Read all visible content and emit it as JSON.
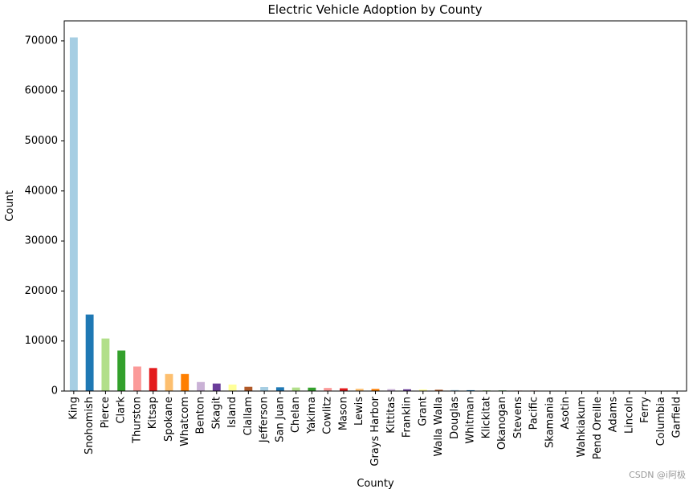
{
  "chart_data": {
    "type": "bar",
    "title": "Electric Vehicle Adoption by County",
    "xlabel": "County",
    "ylabel": "Count",
    "ylim": [
      0,
      74000
    ],
    "yticks": [
      0,
      10000,
      20000,
      30000,
      40000,
      50000,
      60000,
      70000
    ],
    "grid": false,
    "categories": [
      "King",
      "Snohomish",
      "Pierce",
      "Clark",
      "Thurston",
      "Kitsap",
      "Spokane",
      "Whatcom",
      "Benton",
      "Skagit",
      "Island",
      "Clallam",
      "Jefferson",
      "San Juan",
      "Chelan",
      "Yakima",
      "Cowlitz",
      "Mason",
      "Lewis",
      "Grays Harbor",
      "Kittitas",
      "Franklin",
      "Grant",
      "Walla Walla",
      "Douglas",
      "Whitman",
      "Klickitat",
      "Okanogan",
      "Stevens",
      "Pacific",
      "Skamania",
      "Asotin",
      "Wahkiakum",
      "Pend Oreille",
      "Adams",
      "Lincoln",
      "Ferry",
      "Columbia",
      "Garfield"
    ],
    "values": [
      70700,
      15300,
      10500,
      8100,
      4900,
      4600,
      3400,
      3400,
      1800,
      1500,
      1300,
      850,
      800,
      750,
      700,
      680,
      620,
      550,
      450,
      420,
      380,
      350,
      300,
      260,
      200,
      170,
      140,
      120,
      100,
      90,
      80,
      50,
      40,
      30,
      25,
      20,
      15,
      10,
      5
    ],
    "colors": [
      "#a6cee3",
      "#1f78b4",
      "#b2df8a",
      "#33a02c",
      "#fb9a99",
      "#e31a1c",
      "#fdbf6f",
      "#ff7f00",
      "#cab2d6",
      "#6a3d9a",
      "#ffff99",
      "#b15928",
      "#a6cee3",
      "#1f78b4",
      "#b2df8a",
      "#33a02c",
      "#fb9a99",
      "#e31a1c",
      "#fdbf6f",
      "#ff7f00",
      "#cab2d6",
      "#6a3d9a",
      "#ffff99",
      "#b15928",
      "#a6cee3",
      "#1f78b4",
      "#b2df8a",
      "#33a02c",
      "#fb9a99",
      "#e31a1c",
      "#fdbf6f",
      "#ff7f00",
      "#cab2d6",
      "#6a3d9a",
      "#ffff99",
      "#b15928",
      "#a6cee3",
      "#1f78b4",
      "#b2df8a"
    ]
  },
  "watermark": "CSDN @i阿极"
}
